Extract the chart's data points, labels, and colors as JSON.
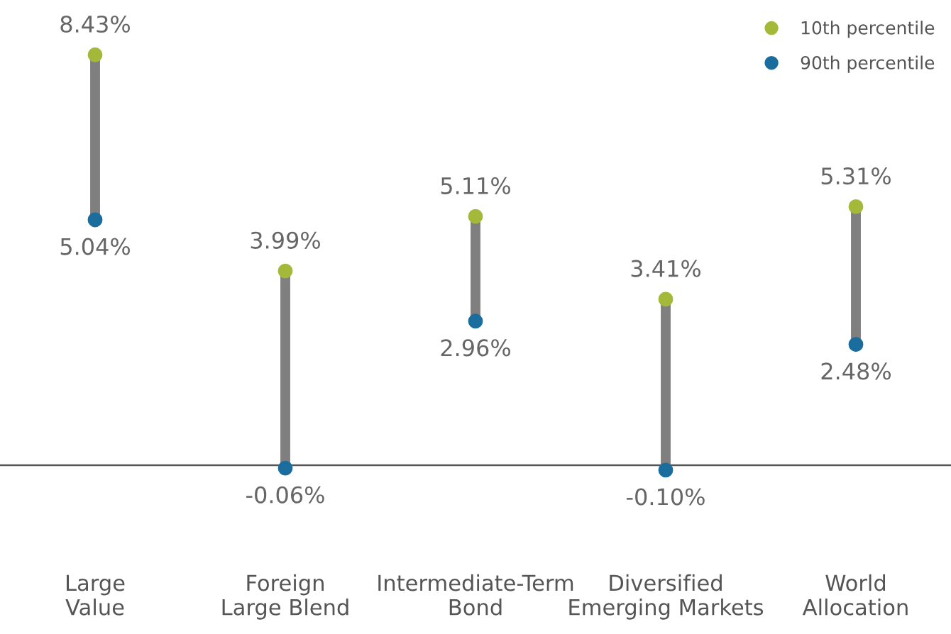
{
  "chart_data": {
    "type": "scatter",
    "categories": [
      "Large\nValue",
      "Foreign\nLarge Blend",
      "Intermediate-Term\nBond",
      "Diversified\nEmerging Markets",
      "World\nAllocation"
    ],
    "series": [
      {
        "name": "10th percentile",
        "color": "#a4b83a",
        "values": [
          8.43,
          3.99,
          5.11,
          3.41,
          5.31
        ],
        "value_labels": [
          "8.43%",
          "3.99%",
          "5.11%",
          "3.41%",
          "5.31%"
        ]
      },
      {
        "name": "90th percentile",
        "color": "#1a6d9c",
        "values": [
          5.04,
          -0.06,
          2.96,
          -0.1,
          2.48
        ],
        "value_labels": [
          "5.04%",
          "-0.06%",
          "2.96%",
          "-0.10%",
          "2.48%"
        ]
      }
    ],
    "ref_lines": [
      {
        "axis": "y",
        "value": 0,
        "color": "#555555"
      }
    ],
    "marker": "circle",
    "legend": "top right",
    "grid": false,
    "tick_labels": "x"
  }
}
